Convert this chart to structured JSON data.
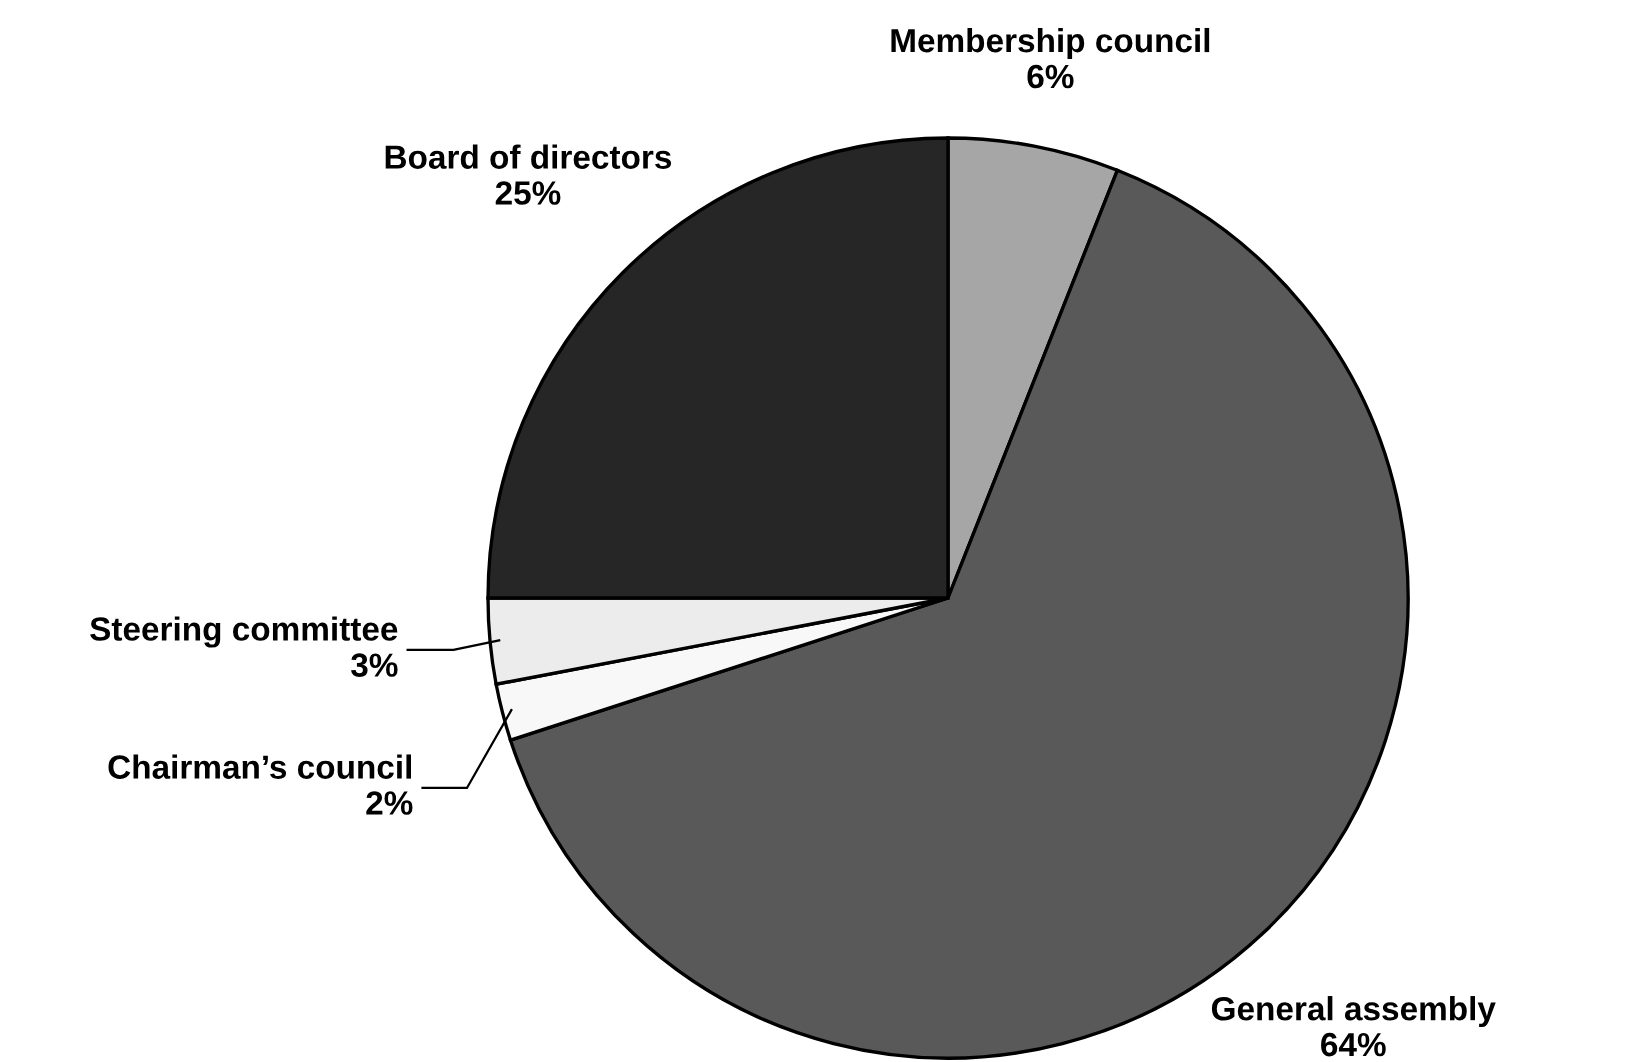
{
  "chart_data": {
    "type": "pie",
    "categories": [
      "Membership council",
      "General assembly",
      "Chairman’s council",
      "Steering committee",
      "Board of directors"
    ],
    "values": [
      6,
      64,
      2,
      3,
      25
    ],
    "colors": [
      "#a6a6a6",
      "#595959",
      "#f8f8f8",
      "#ececec",
      "#262626"
    ],
    "value_labels": [
      "6%",
      "64%",
      "2%",
      "3%",
      "25%"
    ]
  }
}
